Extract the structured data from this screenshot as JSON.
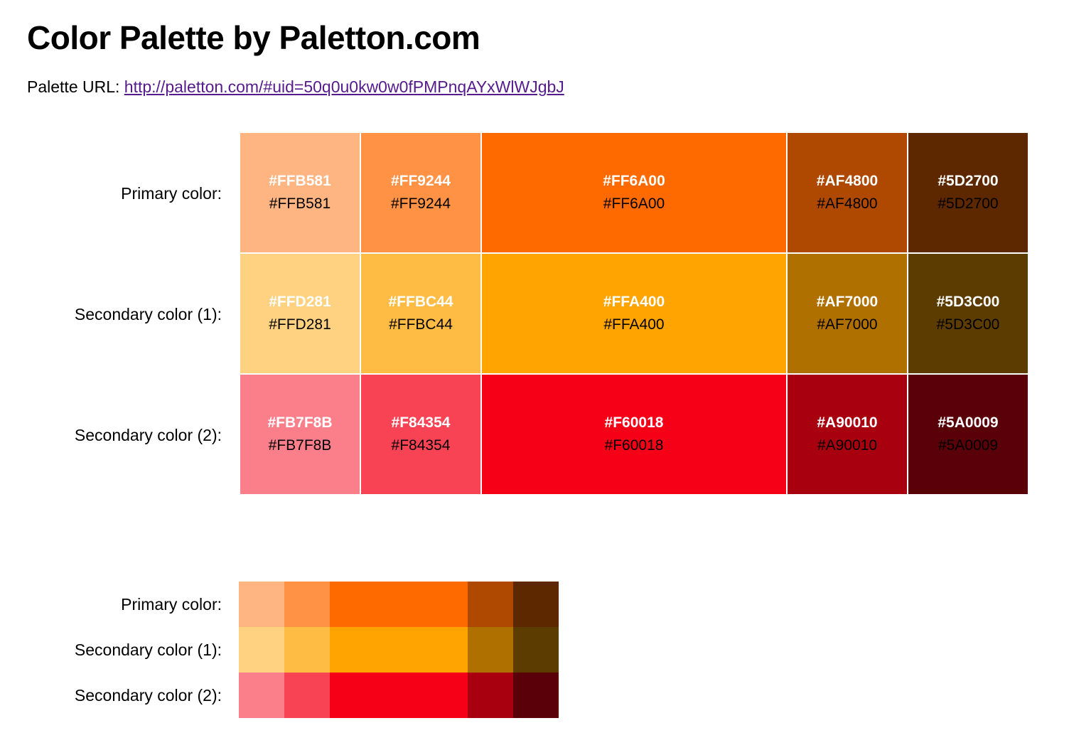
{
  "page": {
    "title": "Color Palette by Paletton.com",
    "url_label": "Palette URL: ",
    "url": "http://paletton.com/#uid=50q0u0kw0w0fPMPnqAYxWlWJgbJ"
  },
  "rows": [
    {
      "label": "Primary color:",
      "colors": [
        "#FFB581",
        "#FF9244",
        "#FF6A00",
        "#AF4800",
        "#5D2700"
      ]
    },
    {
      "label": "Secondary color (1):",
      "colors": [
        "#FFD281",
        "#FFBC44",
        "#FFA400",
        "#AF7000",
        "#5D3C00"
      ]
    },
    {
      "label": "Secondary color (2):",
      "colors": [
        "#FB7F8B",
        "#F84354",
        "#F60018",
        "#A90010",
        "#5A0009"
      ]
    }
  ]
}
